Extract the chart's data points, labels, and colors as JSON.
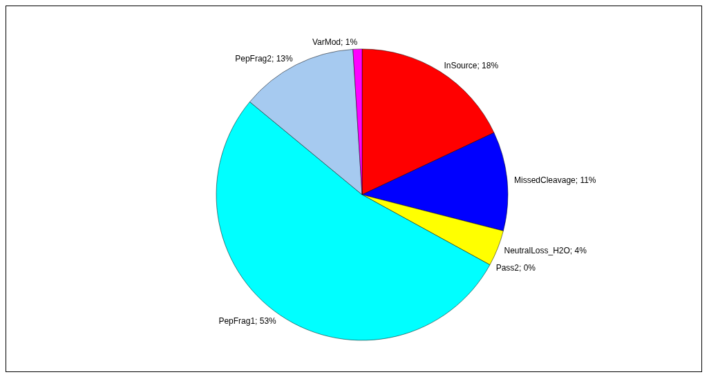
{
  "chart_data": {
    "type": "pie",
    "categories": [
      "InSource; 18%",
      "MissedCleavage; 11%",
      "NeutralLoss_H2O; 4%",
      "Pass2; 0%",
      "PepFrag1; 53%",
      "PepFrag2; 13%",
      "VarMod; 1%"
    ],
    "values": [
      18,
      11,
      4,
      0,
      53,
      13,
      1
    ],
    "colors": [
      "#ff0000",
      "#0000ff",
      "#ffff00",
      "#000000",
      "#00ffff",
      "#a6caf0",
      "#ff00ff"
    ],
    "legend": false
  }
}
